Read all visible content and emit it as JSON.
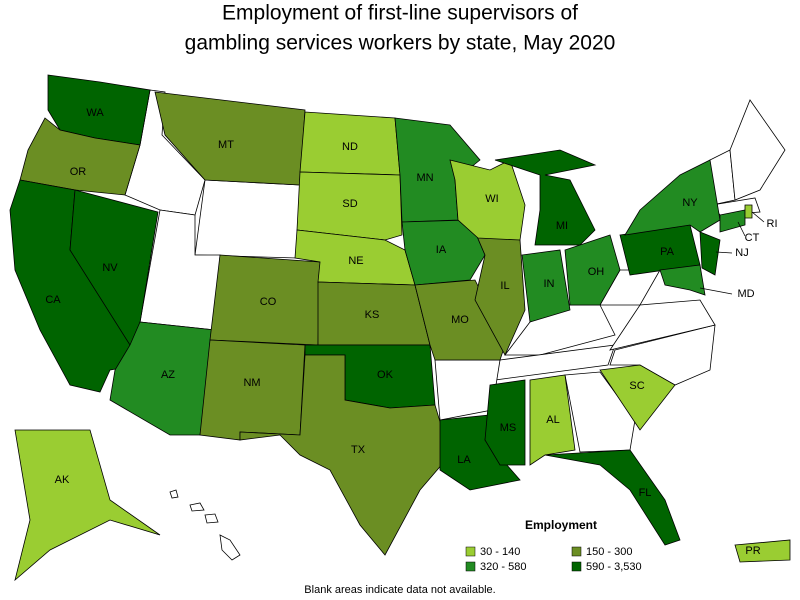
{
  "title": [
    "Employment of first-line supervisors of",
    "gambling services workers by state, May 2020"
  ],
  "legend": {
    "title": "Employment",
    "items": [
      {
        "label": "30 - 140",
        "color": "#9acd32"
      },
      {
        "label": "150 - 300",
        "color": "#6b8e23"
      },
      {
        "label": "320 - 580",
        "color": "#228b22"
      },
      {
        "label": "590 - 3,530",
        "color": "#006400"
      }
    ]
  },
  "states": [
    {
      "label": "WA",
      "class": 3
    },
    {
      "label": "OR",
      "class": 1
    },
    {
      "label": "CA",
      "class": 3
    },
    {
      "label": "NV",
      "class": 3
    },
    {
      "label": "MT",
      "class": 1
    },
    {
      "label": "AZ",
      "class": 2
    },
    {
      "label": "CO",
      "class": 1
    },
    {
      "label": "NM",
      "class": 1
    },
    {
      "label": "ND",
      "class": 0
    },
    {
      "label": "SD",
      "class": 0
    },
    {
      "label": "NE",
      "class": 0
    },
    {
      "label": "KS",
      "class": 1
    },
    {
      "label": "OK",
      "class": 3
    },
    {
      "label": "TX",
      "class": 1
    },
    {
      "label": "MN",
      "class": 2
    },
    {
      "label": "IA",
      "class": 2
    },
    {
      "label": "MO",
      "class": 1
    },
    {
      "label": "IL",
      "class": 1
    },
    {
      "label": "WI",
      "class": 0
    },
    {
      "label": "MI",
      "class": 3
    },
    {
      "label": "IN",
      "class": 2
    },
    {
      "label": "OH",
      "class": 2
    },
    {
      "label": "PA",
      "class": 3
    },
    {
      "label": "NY",
      "class": 2
    },
    {
      "label": "NJ",
      "class": 3
    },
    {
      "label": "MD",
      "class": 2
    },
    {
      "label": "CT",
      "class": 2
    },
    {
      "label": "RI",
      "class": 0
    },
    {
      "label": "LA",
      "class": 3
    },
    {
      "label": "MS",
      "class": 3
    },
    {
      "label": "AL",
      "class": 0
    },
    {
      "label": "SC",
      "class": 0
    },
    {
      "label": "FL",
      "class": 3
    },
    {
      "label": "AK",
      "class": 0
    },
    {
      "label": "PR",
      "class": 0
    }
  ],
  "note": "Blank areas indicate data not available."
}
